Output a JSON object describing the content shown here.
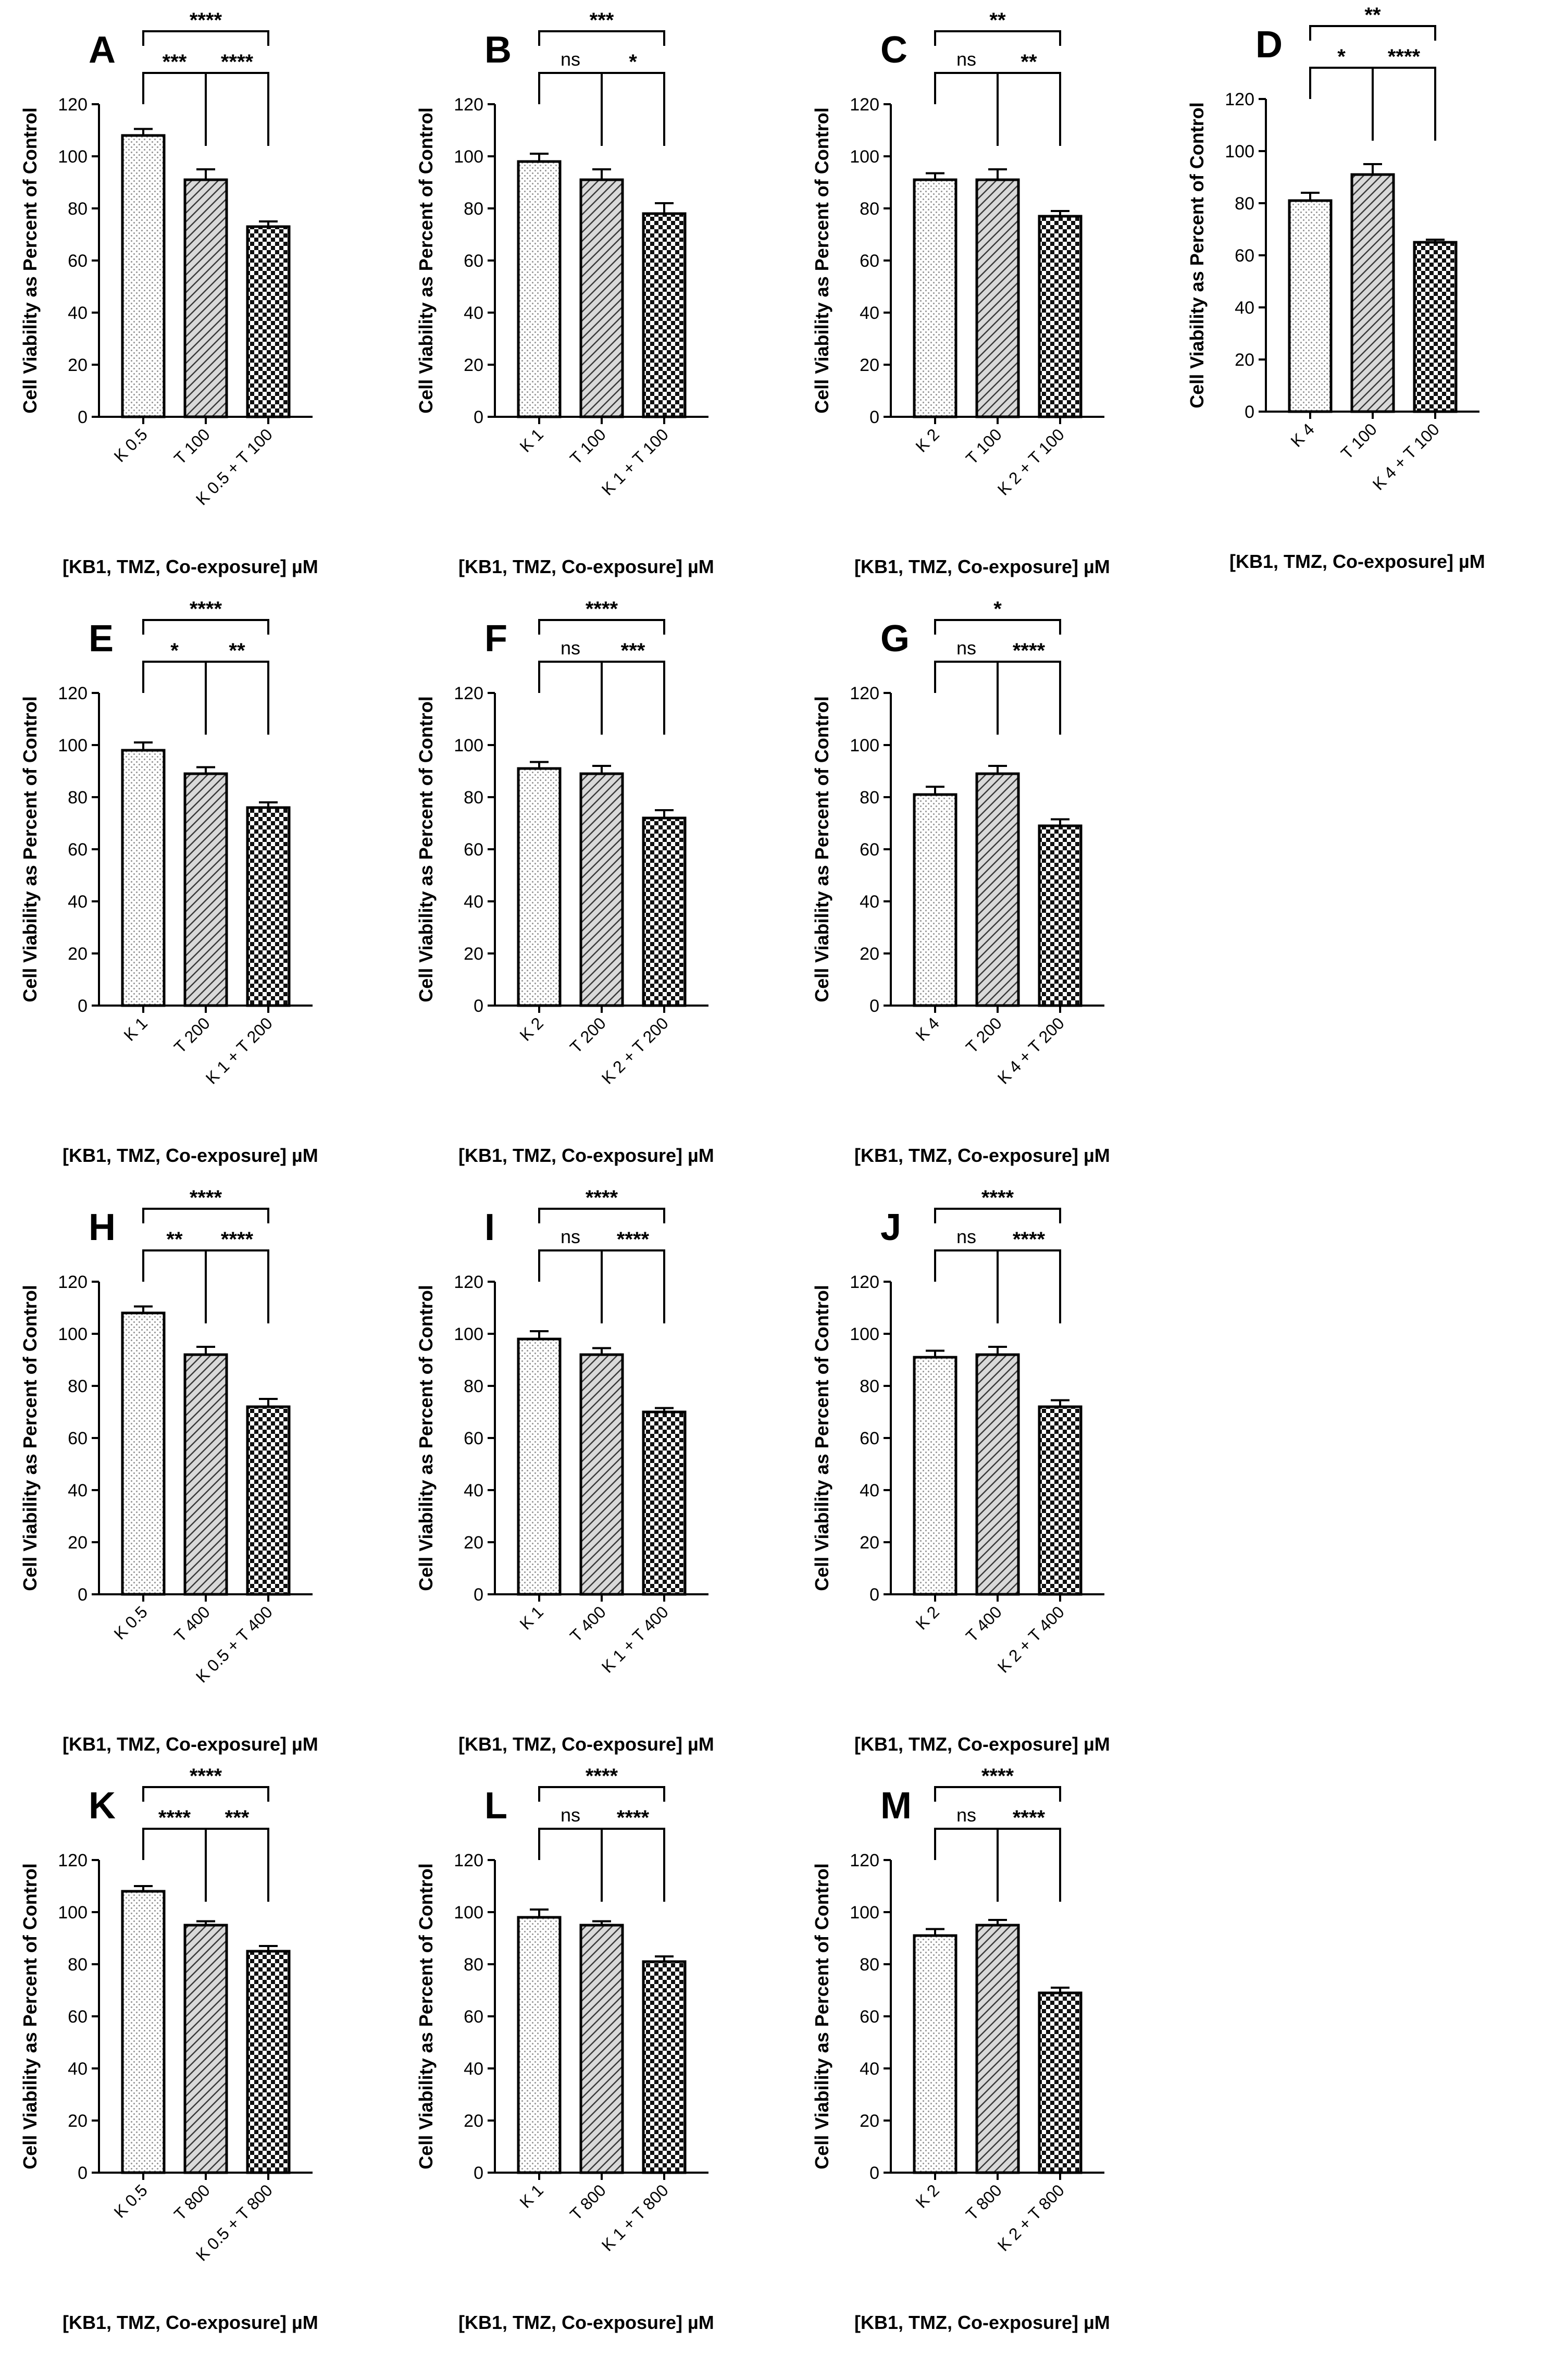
{
  "chart_data": [
    {
      "panel": "A",
      "type": "bar",
      "ylabel": "Cell Viability as Percent of Control",
      "xlabel": "[KB1, TMZ, Co-exposure] µM",
      "ylim": [
        0,
        120
      ],
      "yticks": [
        0,
        20,
        40,
        60,
        80,
        100,
        120
      ],
      "categories": [
        "K 0.5",
        "T 100",
        "K 0.5 + T 100"
      ],
      "values": [
        108,
        91,
        73
      ],
      "errors": [
        2.5,
        4,
        2
      ],
      "comparisons": [
        {
          "from": 0,
          "to": 1,
          "label": "***"
        },
        {
          "from": 1,
          "to": 2,
          "label": "****"
        },
        {
          "from": 0,
          "to": 2,
          "label": "****"
        }
      ]
    },
    {
      "panel": "B",
      "type": "bar",
      "ylabel": "Cell Viability as Percent of Control",
      "xlabel": "[KB1, TMZ, Co-exposure] µM",
      "ylim": [
        0,
        120
      ],
      "yticks": [
        0,
        20,
        40,
        60,
        80,
        100,
        120
      ],
      "categories": [
        "K 1",
        "T 100",
        "K 1 + T 100"
      ],
      "values": [
        98,
        91,
        78
      ],
      "errors": [
        3,
        4,
        4
      ],
      "comparisons": [
        {
          "from": 0,
          "to": 1,
          "label": "ns"
        },
        {
          "from": 1,
          "to": 2,
          "label": "*"
        },
        {
          "from": 0,
          "to": 2,
          "label": "***"
        }
      ]
    },
    {
      "panel": "C",
      "type": "bar",
      "ylabel": "Cell Viability as Percent of Control",
      "xlabel": "[KB1, TMZ, Co-exposure] µM",
      "ylim": [
        0,
        120
      ],
      "yticks": [
        0,
        20,
        40,
        60,
        80,
        100,
        120
      ],
      "categories": [
        "K 2",
        "T 100",
        "K 2 + T 100"
      ],
      "values": [
        91,
        91,
        77
      ],
      "errors": [
        2.5,
        4,
        2
      ],
      "comparisons": [
        {
          "from": 0,
          "to": 1,
          "label": "ns"
        },
        {
          "from": 1,
          "to": 2,
          "label": "**"
        },
        {
          "from": 0,
          "to": 2,
          "label": "**"
        }
      ]
    },
    {
      "panel": "D",
      "type": "bar",
      "ylabel": "Cell Viability as Percent of Control",
      "xlabel": "[KB1, TMZ, Co-exposure] µM",
      "ylim": [
        0,
        120
      ],
      "yticks": [
        0,
        20,
        40,
        60,
        80,
        100,
        120
      ],
      "categories": [
        "K 4",
        "T 100",
        "K 4 + T 100"
      ],
      "values": [
        81,
        91,
        65
      ],
      "errors": [
        3,
        4,
        1
      ],
      "comparisons": [
        {
          "from": 0,
          "to": 1,
          "label": "*"
        },
        {
          "from": 1,
          "to": 2,
          "label": "****"
        },
        {
          "from": 0,
          "to": 2,
          "label": "**"
        }
      ]
    },
    {
      "panel": "E",
      "type": "bar",
      "ylabel": "Cell Viability as Percent of Control",
      "xlabel": "[KB1, TMZ, Co-exposure] µM",
      "ylim": [
        0,
        120
      ],
      "yticks": [
        0,
        20,
        40,
        60,
        80,
        100,
        120
      ],
      "categories": [
        "K 1",
        "T 200",
        "K 1 + T 200"
      ],
      "values": [
        98,
        89,
        76
      ],
      "errors": [
        3,
        2.5,
        2
      ],
      "comparisons": [
        {
          "from": 0,
          "to": 1,
          "label": "*"
        },
        {
          "from": 1,
          "to": 2,
          "label": "**"
        },
        {
          "from": 0,
          "to": 2,
          "label": "****"
        }
      ]
    },
    {
      "panel": "F",
      "type": "bar",
      "ylabel": "Cell Viability as Percent of Control",
      "xlabel": "[KB1, TMZ, Co-exposure] µM",
      "ylim": [
        0,
        120
      ],
      "yticks": [
        0,
        20,
        40,
        60,
        80,
        100,
        120
      ],
      "categories": [
        "K 2",
        "T 200",
        "K 2 + T 200"
      ],
      "values": [
        91,
        89,
        72
      ],
      "errors": [
        2.5,
        3,
        3
      ],
      "comparisons": [
        {
          "from": 0,
          "to": 1,
          "label": "ns"
        },
        {
          "from": 1,
          "to": 2,
          "label": "***"
        },
        {
          "from": 0,
          "to": 2,
          "label": "****"
        }
      ]
    },
    {
      "panel": "G",
      "type": "bar",
      "ylabel": "Cell Viability as Percent of Control",
      "xlabel": "[KB1, TMZ, Co-exposure] µM",
      "ylim": [
        0,
        120
      ],
      "yticks": [
        0,
        20,
        40,
        60,
        80,
        100,
        120
      ],
      "categories": [
        "K 4",
        "T 200",
        "K 4 + T 200"
      ],
      "values": [
        81,
        89,
        69
      ],
      "errors": [
        3,
        3,
        2.5
      ],
      "comparisons": [
        {
          "from": 0,
          "to": 1,
          "label": "ns"
        },
        {
          "from": 1,
          "to": 2,
          "label": "****"
        },
        {
          "from": 0,
          "to": 2,
          "label": "*"
        }
      ]
    },
    {
      "panel": "H",
      "type": "bar",
      "ylabel": "Cell Viability as Percent of Control",
      "xlabel": "[KB1, TMZ, Co-exposure] µM",
      "ylim": [
        0,
        120
      ],
      "yticks": [
        0,
        20,
        40,
        60,
        80,
        100,
        120
      ],
      "categories": [
        "K 0.5",
        "T 400",
        "K 0.5 + T 400"
      ],
      "values": [
        108,
        92,
        72
      ],
      "errors": [
        2.5,
        3,
        3
      ],
      "comparisons": [
        {
          "from": 0,
          "to": 1,
          "label": "**"
        },
        {
          "from": 1,
          "to": 2,
          "label": "****"
        },
        {
          "from": 0,
          "to": 2,
          "label": "****"
        }
      ]
    },
    {
      "panel": "I",
      "type": "bar",
      "ylabel": "Cell Viability as Percent of Control",
      "xlabel": "[KB1, TMZ, Co-exposure] µM",
      "ylim": [
        0,
        120
      ],
      "yticks": [
        0,
        20,
        40,
        60,
        80,
        100,
        120
      ],
      "categories": [
        "K 1",
        "T 400",
        "K 1 + T 400"
      ],
      "values": [
        98,
        92,
        70
      ],
      "errors": [
        3,
        2.5,
        1.5
      ],
      "comparisons": [
        {
          "from": 0,
          "to": 1,
          "label": "ns"
        },
        {
          "from": 1,
          "to": 2,
          "label": "****"
        },
        {
          "from": 0,
          "to": 2,
          "label": "****"
        }
      ]
    },
    {
      "panel": "J",
      "type": "bar",
      "ylabel": "Cell Viability as Percent of Control",
      "xlabel": "[KB1, TMZ, Co-exposure] µM",
      "ylim": [
        0,
        120
      ],
      "yticks": [
        0,
        20,
        40,
        60,
        80,
        100,
        120
      ],
      "categories": [
        "K 2",
        "T 400",
        "K 2 + T 400"
      ],
      "values": [
        91,
        92,
        72
      ],
      "errors": [
        2.5,
        3,
        2.5
      ],
      "comparisons": [
        {
          "from": 0,
          "to": 1,
          "label": "ns"
        },
        {
          "from": 1,
          "to": 2,
          "label": "****"
        },
        {
          "from": 0,
          "to": 2,
          "label": "****"
        }
      ]
    },
    {
      "panel": "K",
      "type": "bar",
      "ylabel": "Cell Viability as Percent of Control",
      "xlabel": "[KB1, TMZ, Co-exposure] µM",
      "ylim": [
        0,
        120
      ],
      "yticks": [
        0,
        20,
        40,
        60,
        80,
        100,
        120
      ],
      "categories": [
        "K 0.5",
        "T 800",
        "K 0.5 + T 800"
      ],
      "values": [
        108,
        95,
        85
      ],
      "errors": [
        2,
        1.5,
        2
      ],
      "comparisons": [
        {
          "from": 0,
          "to": 1,
          "label": "****"
        },
        {
          "from": 1,
          "to": 2,
          "label": "***"
        },
        {
          "from": 0,
          "to": 2,
          "label": "****"
        }
      ]
    },
    {
      "panel": "L",
      "type": "bar",
      "ylabel": "Cell Viability as Percent of Control",
      "xlabel": "[KB1, TMZ, Co-exposure] µM",
      "ylim": [
        0,
        120
      ],
      "yticks": [
        0,
        20,
        40,
        60,
        80,
        100,
        120
      ],
      "categories": [
        "K 1",
        "T 800",
        "K 1 + T 800"
      ],
      "values": [
        98,
        95,
        81
      ],
      "errors": [
        3,
        1.5,
        2
      ],
      "comparisons": [
        {
          "from": 0,
          "to": 1,
          "label": "ns"
        },
        {
          "from": 1,
          "to": 2,
          "label": "****"
        },
        {
          "from": 0,
          "to": 2,
          "label": "****"
        }
      ]
    },
    {
      "panel": "M",
      "type": "bar",
      "ylabel": "Cell Viability as Percent of Control",
      "xlabel": "[KB1, TMZ, Co-exposure] µM",
      "ylim": [
        0,
        120
      ],
      "yticks": [
        0,
        20,
        40,
        60,
        80,
        100,
        120
      ],
      "categories": [
        "K 2",
        "T 800",
        "K 2 + T 800"
      ],
      "values": [
        91,
        95,
        69
      ],
      "errors": [
        2.5,
        2,
        2
      ],
      "comparisons": [
        {
          "from": 0,
          "to": 1,
          "label": "ns"
        },
        {
          "from": 1,
          "to": 2,
          "label": "****"
        },
        {
          "from": 0,
          "to": 2,
          "label": "****"
        }
      ]
    }
  ]
}
